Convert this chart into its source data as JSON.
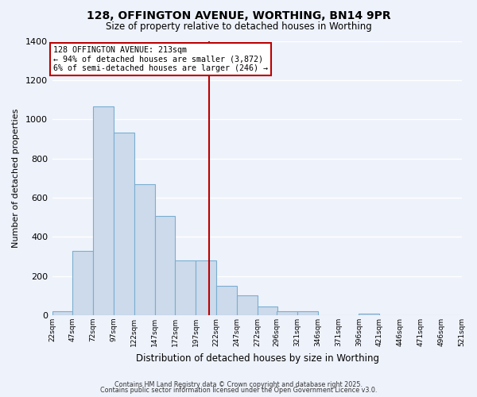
{
  "title": "128, OFFINGTON AVENUE, WORTHING, BN14 9PR",
  "subtitle": "Size of property relative to detached houses in Worthing",
  "xlabel": "Distribution of detached houses by size in Worthing",
  "ylabel": "Number of detached properties",
  "bar_color": "#ccdaeb",
  "bar_edge_color": "#7aaed0",
  "background_color": "#eef2fb",
  "grid_color": "#ffffff",
  "bin_starts": [
    22,
    47,
    72,
    97,
    122,
    147,
    172,
    197,
    222,
    247,
    272,
    296,
    321,
    346,
    371,
    396,
    421,
    446,
    471,
    496
  ],
  "bin_width": 25,
  "bin_labels": [
    "22sqm",
    "47sqm",
    "72sqm",
    "97sqm",
    "122sqm",
    "147sqm",
    "172sqm",
    "197sqm",
    "222sqm",
    "247sqm",
    "272sqm",
    "296sqm",
    "321sqm",
    "346sqm",
    "371sqm",
    "396sqm",
    "421sqm",
    "446sqm",
    "471sqm",
    "496sqm",
    "521sqm"
  ],
  "counts": [
    20,
    330,
    1065,
    930,
    670,
    505,
    280,
    280,
    150,
    100,
    45,
    20,
    20,
    0,
    0,
    10,
    0,
    0,
    0,
    0
  ],
  "ylim": [
    0,
    1400
  ],
  "yticks": [
    0,
    200,
    400,
    600,
    800,
    1000,
    1200,
    1400
  ],
  "vline_x": 213,
  "vline_color": "#bb0000",
  "annotation_title": "128 OFFINGTON AVENUE: 213sqm",
  "annotation_line1": "← 94% of detached houses are smaller (3,872)",
  "annotation_line2": "6% of semi-detached houses are larger (246) →",
  "annotation_box_color": "#ffffff",
  "annotation_box_edge_color": "#bb0000",
  "footer1": "Contains HM Land Registry data © Crown copyright and database right 2025.",
  "footer2": "Contains public sector information licensed under the Open Government Licence v3.0."
}
